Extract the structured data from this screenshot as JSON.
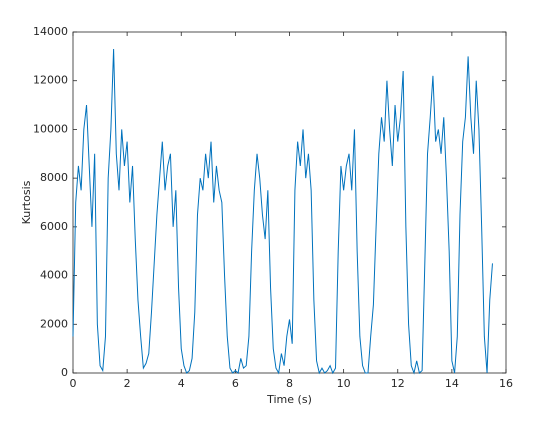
{
  "chart_data": {
    "type": "line",
    "xlabel": "Time (s)",
    "ylabel": "Kurtosis",
    "xlim": [
      0,
      16
    ],
    "xticks": [
      0,
      2,
      4,
      6,
      8,
      10,
      12,
      14,
      16
    ],
    "ylim": [
      0,
      14000
    ],
    "yticks": [
      0,
      2000,
      4000,
      6000,
      8000,
      10000,
      12000,
      14000
    ],
    "grid": false,
    "x": [
      0,
      0.1,
      0.2,
      0.3,
      0.4,
      0.5,
      0.6,
      0.7,
      0.8,
      0.9,
      1,
      1.1,
      1.2,
      1.3,
      1.4,
      1.5,
      1.6,
      1.7,
      1.8,
      1.9,
      2,
      2.1,
      2.2,
      2.3,
      2.4,
      2.5,
      2.6,
      2.7,
      2.8,
      2.9,
      3,
      3.1,
      3.2,
      3.3,
      3.4,
      3.5,
      3.6,
      3.7,
      3.8,
      3.9,
      4,
      4.1,
      4.2,
      4.3,
      4.4,
      4.5,
      4.6,
      4.7,
      4.8,
      4.9,
      5,
      5.1,
      5.2,
      5.3,
      5.4,
      5.5,
      5.6,
      5.7,
      5.8,
      5.9,
      6,
      6.1,
      6.2,
      6.3,
      6.4,
      6.5,
      6.6,
      6.7,
      6.8,
      6.9,
      7,
      7.1,
      7.2,
      7.3,
      7.4,
      7.5,
      7.6,
      7.7,
      7.8,
      7.9,
      8,
      8.1,
      8.2,
      8.3,
      8.4,
      8.5,
      8.6,
      8.7,
      8.8,
      8.9,
      9,
      9.1,
      9.2,
      9.3,
      9.4,
      9.5,
      9.6,
      9.7,
      9.8,
      9.9,
      10,
      10.1,
      10.2,
      10.3,
      10.4,
      10.5,
      10.6,
      10.7,
      10.8,
      10.9,
      11,
      11.1,
      11.2,
      11.3,
      11.4,
      11.5,
      11.6,
      11.7,
      11.8,
      11.9,
      12,
      12.1,
      12.2,
      12.3,
      12.4,
      12.5,
      12.6,
      12.7,
      12.8,
      12.9,
      13,
      13.1,
      13.2,
      13.3,
      13.4,
      13.5,
      13.6,
      13.7,
      13.8,
      13.9,
      14,
      14.1,
      14.2,
      14.3,
      14.4,
      14.5,
      14.6,
      14.7,
      14.8,
      14.9,
      15,
      15.1,
      15.2,
      15.3,
      15.4,
      15.5
    ],
    "series": [
      {
        "color": "#0072bd",
        "values": [
          1500,
          7000,
          8500,
          7500,
          10000,
          11000,
          8500,
          6000,
          9000,
          2000,
          300,
          100,
          1500,
          8000,
          10000,
          13300,
          9000,
          7500,
          10000,
          8500,
          9500,
          7000,
          8500,
          5500,
          3000,
          1500,
          200,
          400,
          800,
          2500,
          4500,
          6500,
          8000,
          9500,
          7500,
          8500,
          9000,
          6000,
          7500,
          3500,
          1000,
          300,
          0,
          100,
          600,
          2500,
          6500,
          8000,
          7500,
          9000,
          8000,
          9500,
          7000,
          8500,
          7500,
          7000,
          4000,
          1500,
          200,
          0,
          100,
          0,
          600,
          200,
          300,
          1500,
          5000,
          7500,
          9000,
          8000,
          6500,
          5500,
          7500,
          3500,
          1000,
          200,
          0,
          800,
          300,
          1500,
          2200,
          1200,
          7500,
          9500,
          8500,
          10000,
          8000,
          9000,
          7500,
          3000,
          500,
          0,
          200,
          0,
          100,
          300,
          0,
          200,
          5000,
          8500,
          7500,
          8500,
          9000,
          7500,
          10000,
          5000,
          1500,
          300,
          0,
          0,
          1500,
          2800,
          6000,
          9000,
          10500,
          9500,
          12000,
          10000,
          8500,
          11000,
          9500,
          10500,
          12400,
          6000,
          2000,
          300,
          0,
          500,
          0,
          100,
          4500,
          9000,
          10500,
          12200,
          9500,
          10000,
          9000,
          10500,
          8000,
          5000,
          500,
          0,
          1500,
          6500,
          9500,
          10500,
          13000,
          10500,
          9000,
          12000,
          10000,
          6000,
          1500,
          0,
          3000,
          4500
        ]
      }
    ]
  }
}
